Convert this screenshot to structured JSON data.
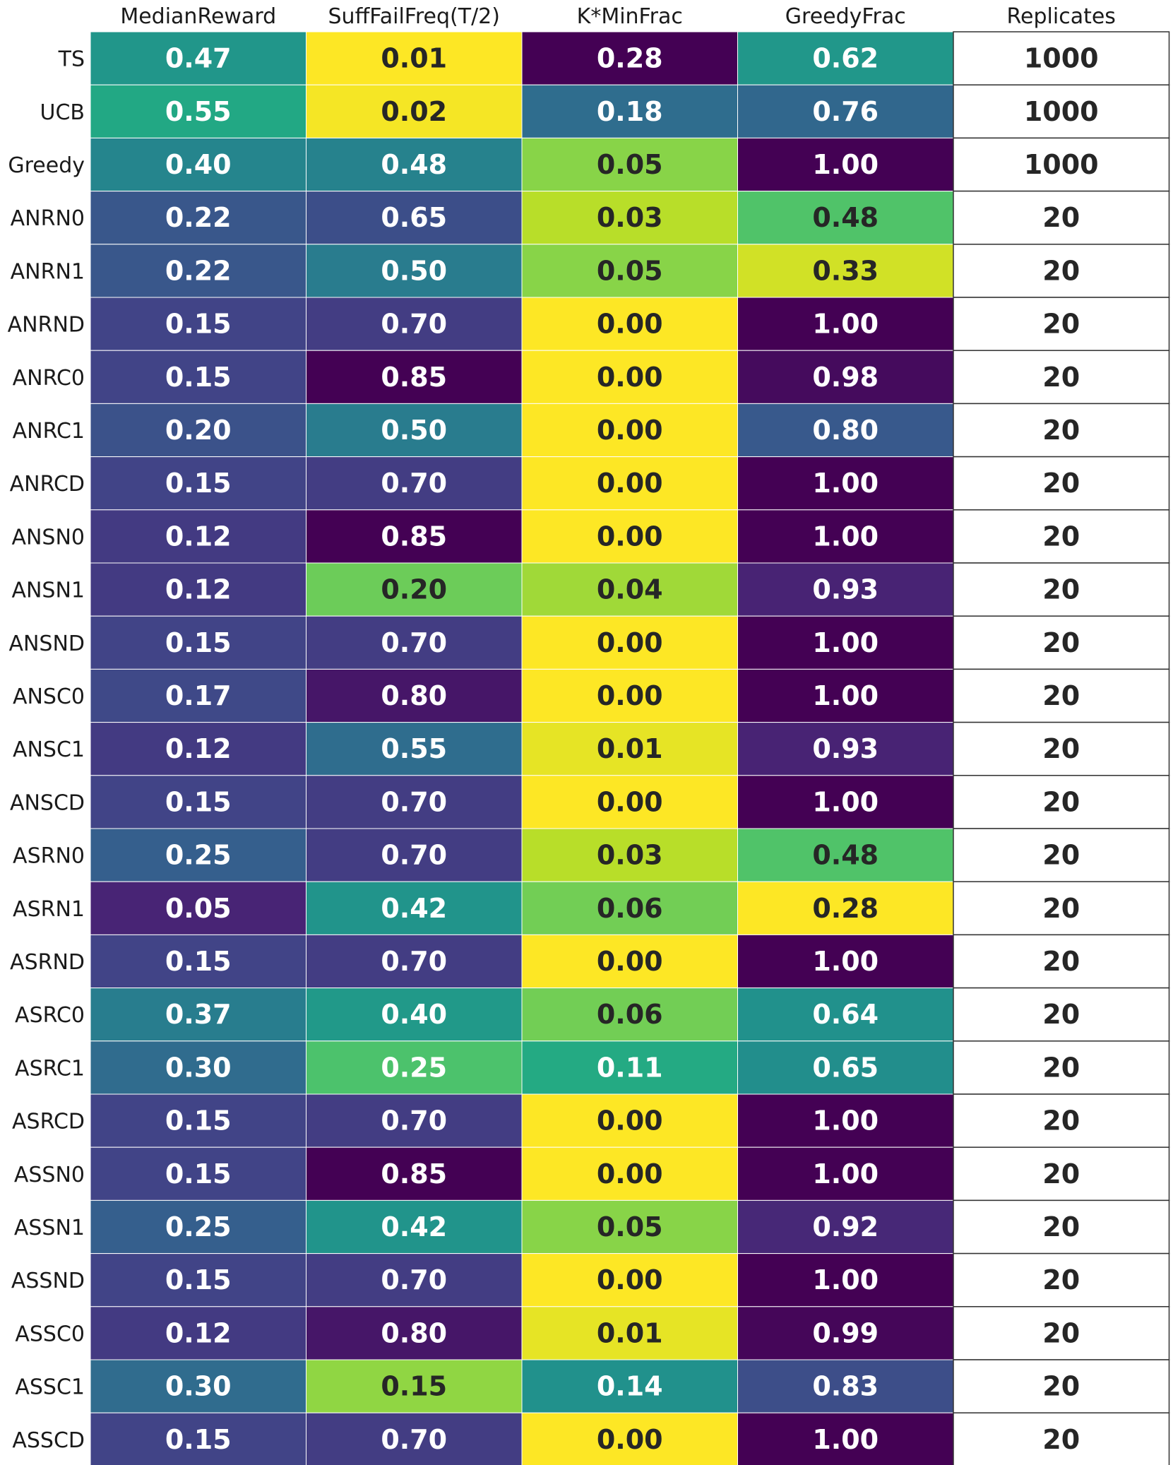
{
  "chart_data": {
    "type": "heatmap",
    "title": "",
    "xlabel": "",
    "ylabel": "",
    "columns": [
      "MedianReward",
      "SuffFailFreq(T/2)",
      "K*MinFrac",
      "GreedyFrac",
      "Replicates"
    ],
    "rows": [
      "TS",
      "UCB",
      "Greedy",
      "ANRN0",
      "ANRN1",
      "ANRND",
      "ANRC0",
      "ANRC1",
      "ANRCD",
      "ANSN0",
      "ANSN1",
      "ANSND",
      "ANSC0",
      "ANSC1",
      "ANSCD",
      "ASRN0",
      "ASRN1",
      "ASRND",
      "ASRC0",
      "ASRC1",
      "ASRCD",
      "ASSN0",
      "ASSN1",
      "ASSND",
      "ASSC0",
      "ASSC1",
      "ASSCD"
    ],
    "colormap": "viridis",
    "color_scales": {
      "MedianReward": {
        "direction": "higher-is-greener",
        "range": [
          0.05,
          0.55
        ]
      },
      "SuffFailFreq(T/2)": {
        "direction": "lower-is-yellower",
        "range": [
          0.01,
          0.85
        ]
      },
      "K*MinFrac": {
        "direction": "lower-is-yellower",
        "range": [
          0.0,
          0.28
        ]
      },
      "GreedyFrac": {
        "direction": "lower-is-yellower",
        "range": [
          0.28,
          1.0
        ]
      },
      "Replicates": {
        "direction": "uncolored",
        "range": [
          20,
          1000
        ]
      }
    },
    "values": [
      [
        "0.47",
        "0.01",
        "0.28",
        "0.62",
        "1000"
      ],
      [
        "0.55",
        "0.02",
        "0.18",
        "0.76",
        "1000"
      ],
      [
        "0.40",
        "0.48",
        "0.05",
        "1.00",
        "1000"
      ],
      [
        "0.22",
        "0.65",
        "0.03",
        "0.48",
        "20"
      ],
      [
        "0.22",
        "0.50",
        "0.05",
        "0.33",
        "20"
      ],
      [
        "0.15",
        "0.70",
        "0.00",
        "1.00",
        "20"
      ],
      [
        "0.15",
        "0.85",
        "0.00",
        "0.98",
        "20"
      ],
      [
        "0.20",
        "0.50",
        "0.00",
        "0.80",
        "20"
      ],
      [
        "0.15",
        "0.70",
        "0.00",
        "1.00",
        "20"
      ],
      [
        "0.12",
        "0.85",
        "0.00",
        "1.00",
        "20"
      ],
      [
        "0.12",
        "0.20",
        "0.04",
        "0.93",
        "20"
      ],
      [
        "0.15",
        "0.70",
        "0.00",
        "1.00",
        "20"
      ],
      [
        "0.17",
        "0.80",
        "0.00",
        "1.00",
        "20"
      ],
      [
        "0.12",
        "0.55",
        "0.01",
        "0.93",
        "20"
      ],
      [
        "0.15",
        "0.70",
        "0.00",
        "1.00",
        "20"
      ],
      [
        "0.25",
        "0.70",
        "0.03",
        "0.48",
        "20"
      ],
      [
        "0.05",
        "0.42",
        "0.06",
        "0.28",
        "20"
      ],
      [
        "0.15",
        "0.70",
        "0.00",
        "1.00",
        "20"
      ],
      [
        "0.37",
        "0.40",
        "0.06",
        "0.64",
        "20"
      ],
      [
        "0.30",
        "0.25",
        "0.11",
        "0.65",
        "20"
      ],
      [
        "0.15",
        "0.70",
        "0.00",
        "1.00",
        "20"
      ],
      [
        "0.15",
        "0.85",
        "0.00",
        "1.00",
        "20"
      ],
      [
        "0.25",
        "0.42",
        "0.05",
        "0.92",
        "20"
      ],
      [
        "0.15",
        "0.70",
        "0.00",
        "1.00",
        "20"
      ],
      [
        "0.12",
        "0.80",
        "0.01",
        "0.99",
        "20"
      ],
      [
        "0.30",
        "0.15",
        "0.14",
        "0.83",
        "20"
      ],
      [
        "0.15",
        "0.70",
        "0.00",
        "1.00",
        "20"
      ]
    ],
    "grid": true,
    "legend": "none"
  }
}
